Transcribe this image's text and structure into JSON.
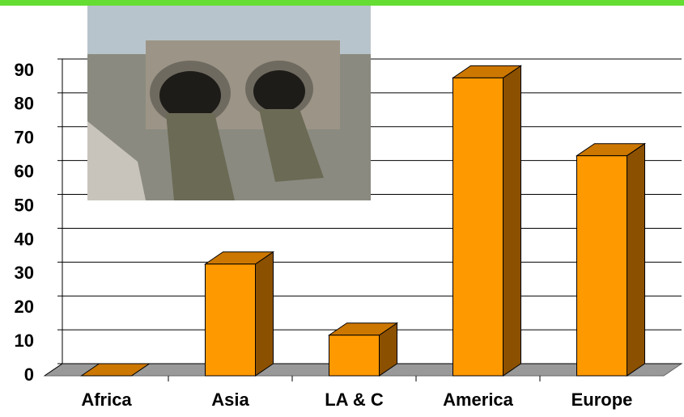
{
  "chart_data": {
    "type": "bar3d",
    "categories": [
      "Africa",
      "Asia",
      "LA & C",
      "America",
      "Europe"
    ],
    "values": [
      0,
      33,
      12,
      88,
      65
    ],
    "color": "#ff9900",
    "ylim": [
      0,
      90
    ],
    "yticks": [
      0,
      10,
      20,
      30,
      40,
      50,
      60,
      70,
      80,
      90
    ],
    "grid": true
  }
}
